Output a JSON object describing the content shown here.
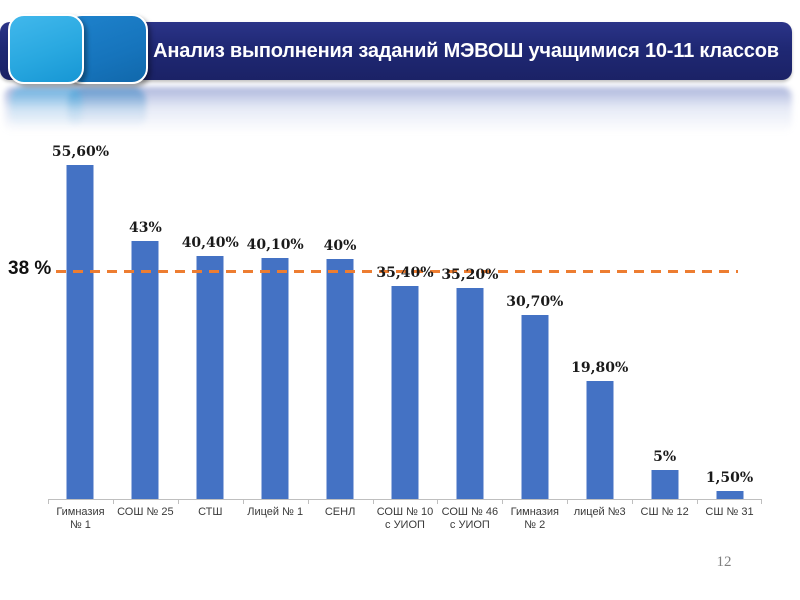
{
  "slide": {
    "title": "Анализ выполнения заданий МЭВОШ учащимися 10-11 классов",
    "page_number": "12"
  },
  "colors": {
    "banner_navy": "#1F2874",
    "square_cyan": "#29A8E0",
    "square_blue": "#1674BC",
    "bar_blue": "#4472C4",
    "threshold_orange": "#ED7D31",
    "axis_gray": "#BFBFBF",
    "page_number_gray": "#7F7F7F"
  },
  "chart_data": {
    "type": "bar",
    "title": "Анализ выполнения заданий МЭВОШ учащимися 10-11 классов",
    "categories": [
      "Гимназия № 1",
      "СОШ № 25",
      "СТШ",
      "Лицей № 1",
      "СЕНЛ",
      "СОШ № 10 с УИОП",
      "СОШ № 46 с УИОП",
      "Гимназия № 2",
      "лицей №3",
      "СШ № 12",
      "СШ № 31"
    ],
    "values": [
      55.6,
      43,
      40.4,
      40.1,
      40,
      35.4,
      35.2,
      30.7,
      19.8,
      5,
      1.5
    ],
    "value_labels": [
      "55,60%",
      "43%",
      "40,40%",
      "40,10%",
      "40%",
      "35,40%",
      "35,20%",
      "30,70%",
      "19,80%",
      "5%",
      "1,50%"
    ],
    "threshold": {
      "value": 38,
      "label": "38 %",
      "color": "#ED7D31"
    },
    "bar_color": "#4472C4",
    "xlabel": "",
    "ylabel": "",
    "ylim": [
      0,
      60
    ],
    "grid": false,
    "legend": false
  }
}
